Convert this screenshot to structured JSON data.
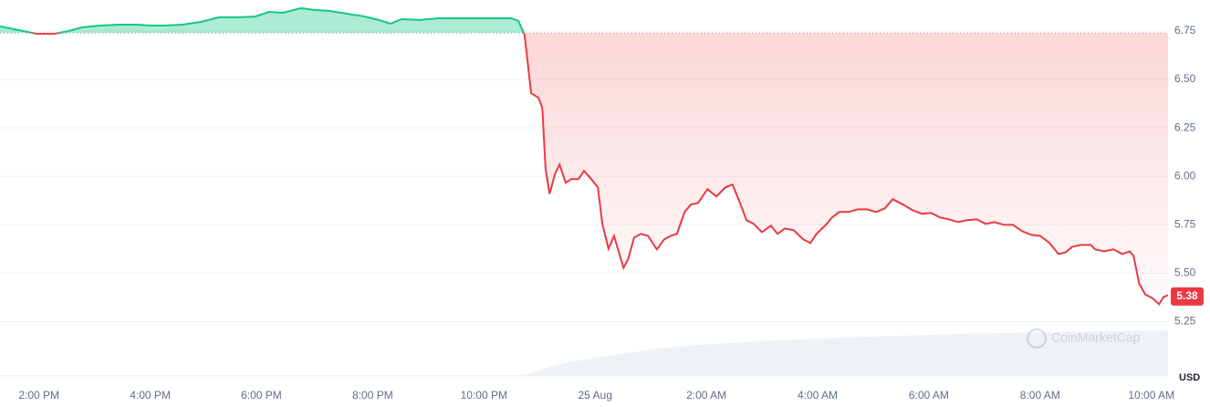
{
  "chart_data": {
    "type": "line",
    "x": [
      13.3,
      13.63,
      13.96,
      14.28,
      14.53,
      14.78,
      15.1,
      15.43,
      15.76,
      16.01,
      16.25,
      16.58,
      16.91,
      17.24,
      17.57,
      17.89,
      18.14,
      18.39,
      18.71,
      18.96,
      19.21,
      19.53,
      19.86,
      20.11,
      20.32,
      20.52,
      20.85,
      21.18,
      21.5,
      21.83,
      22.16,
      22.49,
      22.62,
      22.73,
      22.85,
      22.98,
      23.05,
      23.11,
      23.18,
      23.28,
      23.36,
      23.47,
      23.57,
      23.7,
      23.8,
      23.93,
      24.05,
      24.13,
      24.24,
      24.34,
      24.51,
      24.59,
      24.7,
      24.82,
      24.95,
      25.11,
      25.24,
      25.36,
      25.47,
      25.61,
      25.72,
      25.85,
      26.02,
      26.18,
      26.34,
      26.47,
      26.59,
      26.72,
      26.85,
      27.0,
      27.16,
      27.28,
      27.41,
      27.57,
      27.74,
      27.87,
      27.98,
      28.15,
      28.26,
      28.39,
      28.56,
      28.72,
      28.89,
      29.05,
      29.21,
      29.35,
      29.54,
      29.71,
      29.87,
      30.04,
      30.2,
      30.36,
      30.53,
      30.69,
      30.86,
      31.02,
      31.18,
      31.35,
      31.51,
      31.68,
      31.84,
      32.0,
      32.17,
      32.33,
      32.46,
      32.58,
      32.74,
      32.91,
      32.99,
      33.15,
      33.32,
      33.48,
      33.61,
      33.68,
      33.78,
      33.89,
      34.01,
      34.14,
      34.22,
      34.3
    ],
    "values": [
      6.774,
      6.755,
      6.736,
      6.736,
      6.75,
      6.769,
      6.778,
      6.783,
      6.783,
      6.778,
      6.778,
      6.783,
      6.797,
      6.821,
      6.821,
      6.825,
      6.849,
      6.844,
      6.868,
      6.858,
      6.854,
      6.84,
      6.825,
      6.807,
      6.788,
      6.811,
      6.807,
      6.816,
      6.816,
      6.816,
      6.816,
      6.816,
      6.802,
      6.731,
      6.429,
      6.406,
      6.354,
      6.038,
      5.91,
      6.014,
      6.061,
      5.967,
      5.986,
      5.986,
      6.028,
      5.986,
      5.943,
      5.755,
      5.627,
      5.693,
      5.528,
      5.571,
      5.684,
      5.703,
      5.693,
      5.623,
      5.675,
      5.693,
      5.703,
      5.816,
      5.854,
      5.863,
      5.934,
      5.896,
      5.943,
      5.958,
      5.873,
      5.774,
      5.755,
      5.712,
      5.745,
      5.703,
      5.731,
      5.722,
      5.675,
      5.656,
      5.703,
      5.75,
      5.788,
      5.816,
      5.816,
      5.83,
      5.83,
      5.816,
      5.835,
      5.882,
      5.854,
      5.825,
      5.807,
      5.811,
      5.788,
      5.778,
      5.764,
      5.774,
      5.778,
      5.755,
      5.764,
      5.75,
      5.75,
      5.717,
      5.698,
      5.693,
      5.656,
      5.599,
      5.608,
      5.637,
      5.646,
      5.646,
      5.623,
      5.613,
      5.623,
      5.599,
      5.613,
      5.59,
      5.448,
      5.391,
      5.373,
      5.34,
      5.377,
      5.387
    ],
    "baseline": 6.74,
    "up_color": "#16c784",
    "down_color": "#ea3943",
    "current_price": 5.38,
    "xlim": [
      13.3,
      34.3
    ],
    "xticks": [
      {
        "value": 14,
        "label": "2:00 PM"
      },
      {
        "value": 16,
        "label": "4:00 PM"
      },
      {
        "value": 18,
        "label": "6:00 PM"
      },
      {
        "value": 20,
        "label": "8:00 PM"
      },
      {
        "value": 22,
        "label": "10:00 PM"
      },
      {
        "value": 24,
        "label": "25 Aug"
      },
      {
        "value": 26,
        "label": "2:00 AM"
      },
      {
        "value": 28,
        "label": "4:00 AM"
      },
      {
        "value": 30,
        "label": "6:00 AM"
      },
      {
        "value": 32,
        "label": "8:00 AM"
      },
      {
        "value": 34,
        "label": "10:00 AM"
      }
    ],
    "ylim": [
      4.97,
      6.91
    ],
    "yticks": [
      6.75,
      {
        "value": 6.5,
        "label": "6.50"
      },
      6.25,
      {
        "value": 6,
        "label": "6.00"
      },
      5.75,
      {
        "value": 5.5,
        "label": "5.50"
      },
      5.25
    ],
    "grid": true,
    "unit": "USD",
    "watermark": "CoinMarketCap"
  }
}
